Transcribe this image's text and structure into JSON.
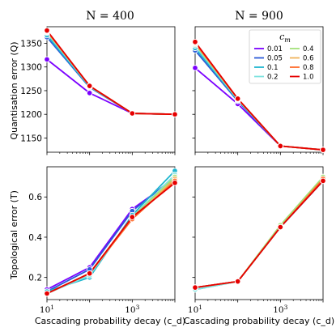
{
  "figure": {
    "panel_titles": [
      "N = 400",
      "N = 900"
    ],
    "ylabels": [
      "Quantisation error (Q)",
      "Topological error (T)"
    ],
    "xlabel": "Cascading probability decay (c_d)",
    "legend_title": "c_m"
  },
  "chart_data": [
    {
      "type": "line",
      "panel": "top-left",
      "title": "N = 400",
      "xlabel": "",
      "ylabel": "Quantisation error (Q)",
      "xscale": "log",
      "x": [
        10,
        100,
        1000,
        10000
      ],
      "xlim": [
        10,
        10000
      ],
      "ylim": [
        1120,
        1385
      ],
      "yticks": [
        1150,
        1200,
        1250,
        1300,
        1350
      ],
      "series": [
        {
          "name": "0.01",
          "color": "#7b00ff",
          "values": [
            1316,
            1245,
            1202,
            1200
          ]
        },
        {
          "name": "0.05",
          "color": "#2a5bd7",
          "values": [
            1363,
            1257,
            1202,
            1200
          ]
        },
        {
          "name": "0.1",
          "color": "#1fb6cf",
          "values": [
            1367,
            1258,
            1202,
            1200
          ]
        },
        {
          "name": "0.2",
          "color": "#7ee3e0",
          "values": [
            1372,
            1259,
            1202,
            1200
          ]
        },
        {
          "name": "0.4",
          "color": "#a3e27a",
          "values": [
            1374,
            1260,
            1202,
            1200
          ]
        },
        {
          "name": "0.6",
          "color": "#f0b35a",
          "values": [
            1375,
            1260,
            1202,
            1200
          ]
        },
        {
          "name": "0.8",
          "color": "#ff6b2b",
          "values": [
            1376,
            1260,
            1202,
            1200
          ]
        },
        {
          "name": "1.0",
          "color": "#e60000",
          "values": [
            1377,
            1260,
            1202,
            1200
          ]
        }
      ]
    },
    {
      "type": "line",
      "panel": "top-right",
      "title": "N = 900",
      "xlabel": "",
      "ylabel": "",
      "xscale": "log",
      "x": [
        10,
        100,
        1000,
        10000
      ],
      "xlim": [
        10,
        10000
      ],
      "ylim": [
        1120,
        1385
      ],
      "yticks": [
        1150,
        1200,
        1250,
        1300,
        1350
      ],
      "series": [
        {
          "name": "0.01",
          "color": "#7b00ff",
          "values": [
            1298,
            1222,
            1133,
            1125
          ]
        },
        {
          "name": "0.05",
          "color": "#2a5bd7",
          "values": [
            1335,
            1228,
            1133,
            1125
          ]
        },
        {
          "name": "0.1",
          "color": "#1fb6cf",
          "values": [
            1340,
            1230,
            1133,
            1125
          ]
        },
        {
          "name": "0.2",
          "color": "#7ee3e0",
          "values": [
            1345,
            1231,
            1133,
            1125
          ]
        },
        {
          "name": "0.4",
          "color": "#a3e27a",
          "values": [
            1348,
            1232,
            1133,
            1125
          ]
        },
        {
          "name": "0.6",
          "color": "#f0b35a",
          "values": [
            1350,
            1233,
            1133,
            1125
          ]
        },
        {
          "name": "0.8",
          "color": "#ff6b2b",
          "values": [
            1351,
            1233,
            1133,
            1125
          ]
        },
        {
          "name": "1.0",
          "color": "#e60000",
          "values": [
            1353,
            1233,
            1133,
            1125
          ]
        }
      ],
      "legend": {
        "title": "c_m",
        "position": "top-right",
        "columns": 2
      }
    },
    {
      "type": "line",
      "panel": "bottom-left",
      "title": "",
      "xlabel": "Cascading probability decay (c_d)",
      "ylabel": "Topological error (T)",
      "xscale": "log",
      "x": [
        10,
        100,
        1000,
        10000
      ],
      "xlim": [
        10,
        10000
      ],
      "ylim": [
        0.09,
        0.75
      ],
      "yticks": [
        0.2,
        0.4,
        0.6
      ],
      "series": [
        {
          "name": "0.01",
          "color": "#7b00ff",
          "values": [
            0.14,
            0.25,
            0.54,
            0.69
          ]
        },
        {
          "name": "0.05",
          "color": "#2a5bd7",
          "values": [
            0.13,
            0.24,
            0.53,
            0.7
          ]
        },
        {
          "name": "0.1",
          "color": "#1fb6cf",
          "values": [
            0.13,
            0.2,
            0.51,
            0.73
          ]
        },
        {
          "name": "0.2",
          "color": "#7ee3e0",
          "values": [
            0.12,
            0.21,
            0.5,
            0.71
          ]
        },
        {
          "name": "0.4",
          "color": "#a3e27a",
          "values": [
            0.12,
            0.22,
            0.5,
            0.7
          ]
        },
        {
          "name": "0.6",
          "color": "#f0b35a",
          "values": [
            0.12,
            0.22,
            0.49,
            0.69
          ]
        },
        {
          "name": "0.8",
          "color": "#ff6b2b",
          "values": [
            0.12,
            0.22,
            0.49,
            0.68
          ]
        },
        {
          "name": "1.0",
          "color": "#e60000",
          "values": [
            0.12,
            0.22,
            0.5,
            0.67
          ]
        }
      ]
    },
    {
      "type": "line",
      "panel": "bottom-right",
      "title": "",
      "xlabel": "Cascading probability decay (c_d)",
      "ylabel": "",
      "xscale": "log",
      "x": [
        10,
        100,
        1000,
        10000
      ],
      "xlim": [
        10,
        10000
      ],
      "ylim": [
        0.09,
        0.75
      ],
      "yticks": [
        0.2,
        0.4,
        0.6
      ],
      "series": [
        {
          "name": "0.01",
          "color": "#7b00ff",
          "values": [
            0.15,
            0.18,
            0.45,
            0.68
          ]
        },
        {
          "name": "0.05",
          "color": "#2a5bd7",
          "values": [
            0.15,
            0.18,
            0.45,
            0.68
          ]
        },
        {
          "name": "0.1",
          "color": "#1fb6cf",
          "values": [
            0.14,
            0.18,
            0.45,
            0.68
          ]
        },
        {
          "name": "0.2",
          "color": "#7ee3e0",
          "values": [
            0.14,
            0.18,
            0.45,
            0.69
          ]
        },
        {
          "name": "0.4",
          "color": "#a3e27a",
          "values": [
            0.15,
            0.18,
            0.46,
            0.7
          ]
        },
        {
          "name": "0.6",
          "color": "#f0b35a",
          "values": [
            0.15,
            0.18,
            0.45,
            0.69
          ]
        },
        {
          "name": "0.8",
          "color": "#ff6b2b",
          "values": [
            0.15,
            0.18,
            0.45,
            0.69
          ]
        },
        {
          "name": "1.0",
          "color": "#e60000",
          "values": [
            0.15,
            0.18,
            0.45,
            0.68
          ]
        }
      ]
    }
  ]
}
